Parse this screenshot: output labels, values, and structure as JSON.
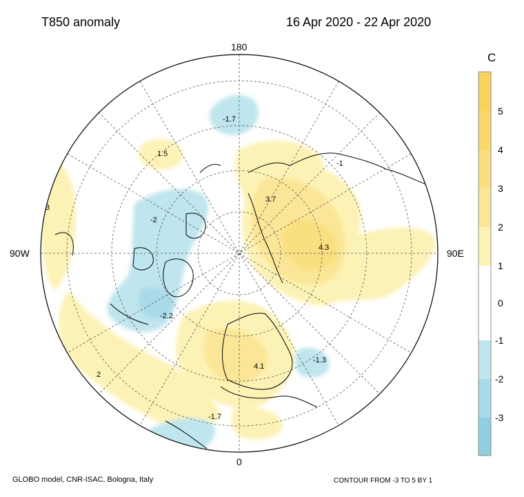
{
  "title": "T850 anomaly",
  "period": "16 Apr 2020 - 22 Apr 2020",
  "longitude_labels": {
    "top": "180",
    "bottom": "0",
    "left": "90W",
    "right": "90E"
  },
  "colorbar": {
    "unit": "C",
    "ticks": [
      "5",
      "4",
      "3",
      "2",
      "1",
      "0",
      "-1",
      "-2",
      "-3"
    ],
    "bands": [
      {
        "range": "above 5",
        "color": "#f8d25e"
      },
      {
        "range": "4 to 5",
        "color": "#f9d96e"
      },
      {
        "range": "3 to 4",
        "color": "#fadf80"
      },
      {
        "range": "2 to 3",
        "color": "#fbe697"
      },
      {
        "range": "1 to 2",
        "color": "#fdf2b5"
      },
      {
        "range": "-1 to 1",
        "color": "#ffffff"
      },
      {
        "range": "-2 to -1",
        "color": "#bfe5ee"
      },
      {
        "range": "-3 to -2",
        "color": "#a9dae7"
      },
      {
        "range": "below -3",
        "color": "#91cfe0"
      }
    ]
  },
  "anomaly_labels": [
    "-1.7",
    "1.5",
    "-1",
    "3.7",
    "-2",
    "4.3",
    "3",
    "-2.2",
    "-1.3",
    "4.1",
    "2",
    "-1.7"
  ],
  "footer": {
    "source": "GLOBO model, CNR-ISAC, Bologna, Italy",
    "contour": "CONTOUR FROM -3 TO 5 BY 1"
  }
}
